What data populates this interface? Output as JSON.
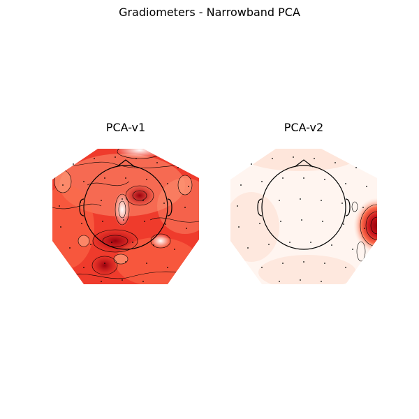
{
  "figure": {
    "title": "Gradiometers - Narrowband PCA"
  },
  "topomaps": [
    {
      "title": "PCA-v1",
      "colormap": "Reds"
    },
    {
      "title": "PCA-v2",
      "colormap": "Reds"
    }
  ],
  "colors": {
    "dark_red": "#a50f15",
    "mid_red": "#ef3b2c",
    "light_red": "#fcbba1",
    "pale": "#fff5f0",
    "outline": "#000000"
  }
}
